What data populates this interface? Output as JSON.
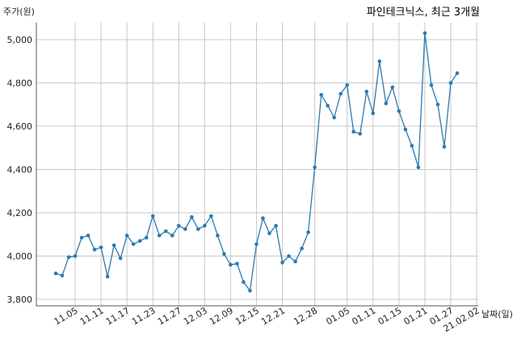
{
  "chart_data": {
    "type": "line",
    "title": "파인테크닉스, 최근 3개월",
    "ylabel": "주가(원)",
    "xlabel": "날짜(일)",
    "ylim": [
      3780,
      5100
    ],
    "yticks": [
      3800,
      4000,
      4200,
      4400,
      4600,
      4800,
      5000
    ],
    "ytick_labels": [
      "3,800",
      "4,000",
      "4,200",
      "4,400",
      "4,600",
      "4,800",
      "5,000"
    ],
    "xtick_labels": [
      "11.05",
      "11.11",
      "11.17",
      "11.23",
      "11.27",
      "12.03",
      "12.09",
      "12.15",
      "12.21",
      "12.28",
      "01.05",
      "01.11",
      "01.15",
      "01.21",
      "01.27",
      "21.02.02"
    ],
    "xtick_indices": [
      3,
      7,
      11,
      15,
      19,
      23,
      27,
      31,
      35,
      40,
      45,
      49,
      53,
      57,
      61,
      65
    ],
    "grid": true,
    "color": "#2b7bb0",
    "series": [
      {
        "values": [
          3920,
          3910,
          3995,
          4000,
          4085,
          4095,
          4030,
          4040,
          3905,
          4050,
          3990,
          4095,
          4055,
          4070,
          4085,
          4185,
          4095,
          4115,
          4095,
          4140,
          4125,
          4180,
          4125,
          4140,
          4185,
          4095,
          4010,
          3960,
          3965,
          3880,
          3840,
          4055,
          4175,
          4105,
          4140,
          3970,
          4000,
          3975,
          4035,
          4110,
          4410,
          4745,
          4695,
          4640,
          4750,
          4790,
          4575,
          4565,
          4760,
          4660,
          4900,
          4705,
          4780,
          4670,
          4585,
          4510,
          4410,
          5030,
          4790,
          4700,
          4505,
          4800,
          4845
        ]
      }
    ]
  }
}
